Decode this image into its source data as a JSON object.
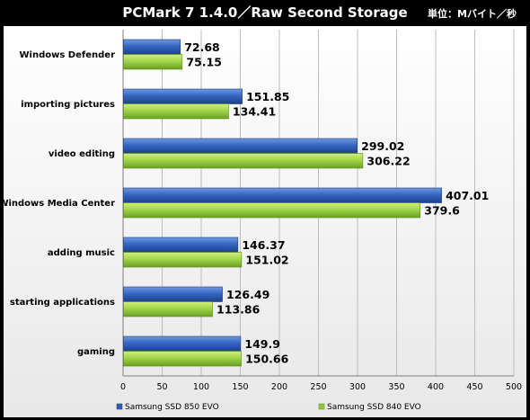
{
  "chart_data": {
    "type": "bar",
    "orientation": "horizontal",
    "title": "PCMark 7 1.4.0／Raw Second Storage",
    "unit_label": "単位：Mバイト／秒",
    "categories": [
      "Windows Defender",
      "importing pictures",
      "video editing",
      "Windows Media Center",
      "adding music",
      "starting applications",
      "gaming"
    ],
    "series": [
      {
        "name": "Samsung SSD 850 EVO",
        "values": [
          72.68,
          151.85,
          299.02,
          407.01,
          146.37,
          126.49,
          149.9
        ],
        "color": "#2f5fb5",
        "labels": [
          "72.68",
          "151.85",
          "299.02",
          "407.01",
          "146.37",
          "126.49",
          "149.9"
        ]
      },
      {
        "name": "Samsung SSD 840 EVO",
        "values": [
          75.15,
          134.41,
          306.22,
          379.6,
          151.02,
          113.86,
          150.66
        ],
        "color": "#8ec63f",
        "labels": [
          "75.15",
          "134.41",
          "306.22",
          "379.6",
          "151.02",
          "113.86",
          "150.66"
        ]
      }
    ],
    "xlim": [
      0,
      500
    ],
    "xticks": [
      "0",
      "50",
      "100",
      "150",
      "200",
      "250",
      "300",
      "350",
      "400",
      "450",
      "500"
    ],
    "grid": true,
    "legend_position": "bottom"
  }
}
